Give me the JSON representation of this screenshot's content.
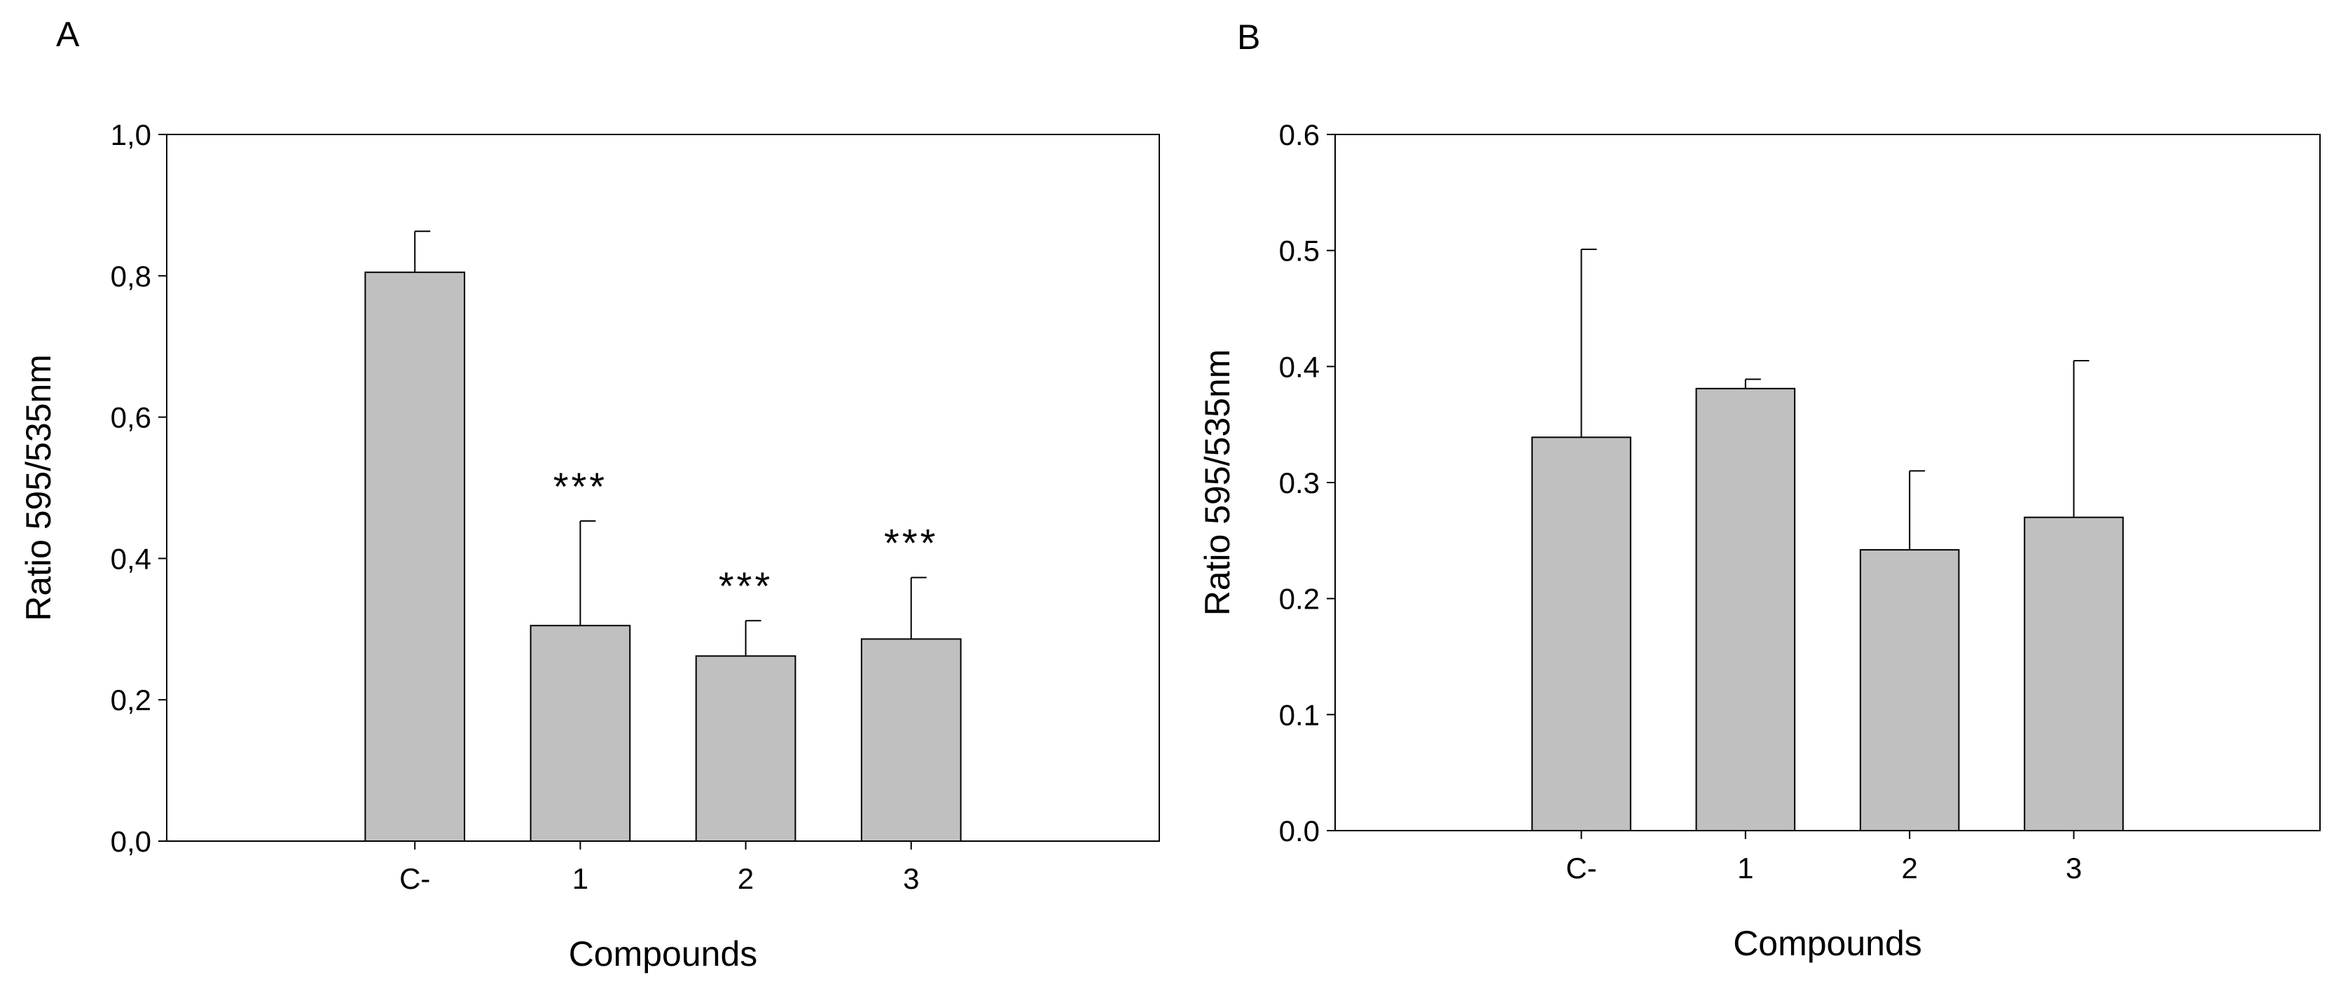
{
  "chart_data": [
    {
      "type": "bar",
      "panel": "A",
      "categories": [
        "C-",
        "1",
        "2",
        "3"
      ],
      "values": [
        0.805,
        0.305,
        0.262,
        0.286
      ],
      "error_bars": [
        0.058,
        0.148,
        0.05,
        0.087
      ],
      "annotations": [
        "",
        "***",
        "***",
        "***"
      ],
      "xlabel": "Compounds",
      "ylabel": "Ratio 595/535nm",
      "ylim": [
        0,
        1.0
      ],
      "yticks": [
        0.0,
        0.2,
        0.4,
        0.6,
        0.8,
        1.0
      ],
      "ytick_labels": [
        "0,0",
        "0,2",
        "0,4",
        "0,6",
        "0,8",
        "1,0"
      ],
      "bar_color": "#c0c0c0",
      "grid": false
    },
    {
      "type": "bar",
      "panel": "B",
      "categories": [
        "C-",
        "1",
        "2",
        "3"
      ],
      "values": [
        0.339,
        0.381,
        0.242,
        0.27
      ],
      "error_bars": [
        0.162,
        0.008,
        0.068,
        0.135
      ],
      "annotations": [
        "",
        "",
        "",
        ""
      ],
      "xlabel": "Compounds",
      "ylabel": "Ratio 595/535nm",
      "ylim": [
        0,
        0.6
      ],
      "yticks": [
        0.0,
        0.1,
        0.2,
        0.3,
        0.4,
        0.5,
        0.6
      ],
      "ytick_labels": [
        "0.0",
        "0.1",
        "0.2",
        "0.3",
        "0.4",
        "0.5",
        "0.6"
      ],
      "bar_color": "#c0c0c0",
      "grid": false
    }
  ]
}
